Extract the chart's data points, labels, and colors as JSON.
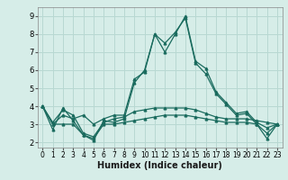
{
  "title": "",
  "xlabel": "Humidex (Indice chaleur)",
  "ylabel": "",
  "background_color": "#d6ede8",
  "line_color": "#1a6b5e",
  "grid_color": "#b8d8d2",
  "xlim": [
    -0.5,
    23.5
  ],
  "ylim": [
    1.7,
    9.5
  ],
  "xticks": [
    0,
    1,
    2,
    3,
    4,
    5,
    6,
    7,
    8,
    9,
    10,
    11,
    12,
    13,
    14,
    15,
    16,
    17,
    18,
    19,
    20,
    21,
    22,
    23
  ],
  "yticks": [
    2,
    3,
    4,
    5,
    6,
    7,
    8,
    9
  ],
  "series": [
    [
      4.0,
      2.7,
      3.9,
      3.2,
      2.4,
      2.1,
      3.2,
      3.1,
      3.3,
      5.3,
      6.0,
      8.0,
      7.0,
      8.0,
      9.0,
      6.5,
      6.1,
      4.8,
      4.2,
      3.6,
      3.7,
      3.1,
      2.8,
      3.0
    ],
    [
      4.0,
      3.0,
      3.5,
      3.3,
      3.5,
      3.0,
      3.3,
      3.5,
      3.5,
      5.5,
      5.9,
      8.0,
      7.5,
      8.1,
      8.9,
      6.4,
      5.8,
      4.7,
      4.1,
      3.5,
      3.6,
      3.0,
      2.5,
      3.0
    ],
    [
      4.0,
      3.1,
      3.8,
      3.5,
      2.5,
      2.3,
      3.1,
      3.3,
      3.4,
      3.7,
      3.8,
      3.9,
      3.9,
      3.9,
      3.9,
      3.8,
      3.6,
      3.4,
      3.3,
      3.3,
      3.3,
      3.2,
      3.1,
      3.0
    ],
    [
      4.0,
      3.0,
      3.0,
      3.0,
      2.4,
      2.2,
      3.0,
      3.0,
      3.1,
      3.2,
      3.3,
      3.4,
      3.5,
      3.5,
      3.5,
      3.4,
      3.3,
      3.2,
      3.1,
      3.1,
      3.1,
      3.0,
      2.2,
      3.0
    ]
  ],
  "xlabel_fontsize": 7,
  "tick_fontsize": 5.5,
  "marker_size": 2.0,
  "linewidth": 0.9
}
